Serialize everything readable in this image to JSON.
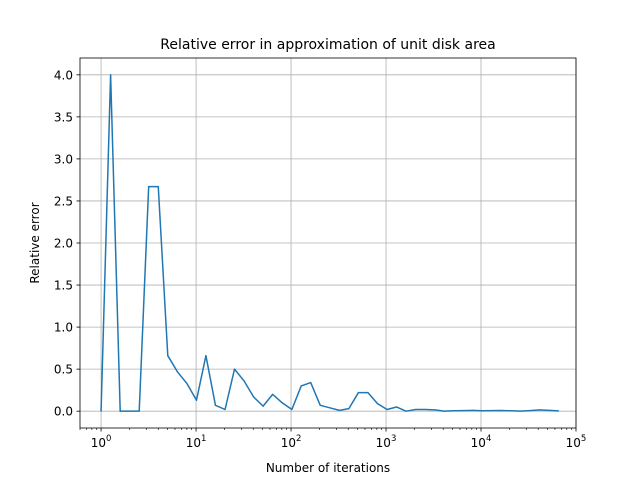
{
  "chart_data": {
    "type": "line",
    "title": "Relative error in approximation of unit disk area",
    "xlabel": "Number of iterations",
    "ylabel": "Relative error",
    "xscale": "log",
    "xlim": [
      0.6,
      100000
    ],
    "ylim": [
      -0.2,
      4.2
    ],
    "grid": true,
    "line_color": "#1f77b4",
    "x_ticks": [
      {
        "value": 1,
        "base": "10",
        "exp": "0"
      },
      {
        "value": 10,
        "base": "10",
        "exp": "1"
      },
      {
        "value": 100,
        "base": "10",
        "exp": "2"
      },
      {
        "value": 1000,
        "base": "10",
        "exp": "3"
      },
      {
        "value": 10000,
        "base": "10",
        "exp": "4"
      },
      {
        "value": 100000,
        "base": "10",
        "exp": "5"
      }
    ],
    "y_ticks": [
      {
        "value": 0.0,
        "label": "0.0"
      },
      {
        "value": 0.5,
        "label": "0.5"
      },
      {
        "value": 1.0,
        "label": "1.0"
      },
      {
        "value": 1.5,
        "label": "1.5"
      },
      {
        "value": 2.0,
        "label": "2.0"
      },
      {
        "value": 2.5,
        "label": "2.5"
      },
      {
        "value": 3.0,
        "label": "3.0"
      },
      {
        "value": 3.5,
        "label": "3.5"
      },
      {
        "value": 4.0,
        "label": "4.0"
      }
    ],
    "series": [
      {
        "x": [
          1,
          1.26,
          1.59,
          2,
          2.52,
          3.17,
          4,
          5.04,
          6.35,
          8,
          10.1,
          12.7,
          16,
          20.2,
          25.4,
          32,
          40.3,
          50.8,
          64,
          80.6,
          102,
          128,
          161,
          203,
          256,
          323,
          406,
          512,
          645,
          813,
          1024,
          1290,
          1625,
          2048,
          2580,
          3251,
          4096,
          5161,
          6502,
          8192,
          10321,
          13004,
          16384,
          20643,
          26008,
          32768,
          41285,
          52016,
          65536
        ],
        "y": [
          0.0,
          4.0,
          0.0,
          0.0,
          0.0,
          2.67,
          2.67,
          0.66,
          0.47,
          0.33,
          0.13,
          0.66,
          0.07,
          0.02,
          0.5,
          0.36,
          0.17,
          0.06,
          0.2,
          0.1,
          0.02,
          0.3,
          0.34,
          0.07,
          0.04,
          0.01,
          0.03,
          0.22,
          0.22,
          0.09,
          0.02,
          0.05,
          0.0,
          0.02,
          0.02,
          0.015,
          0.0,
          0.005,
          0.007,
          0.01,
          0.005,
          0.007,
          0.008,
          0.005,
          0.001,
          0.007,
          0.015,
          0.01,
          0.003
        ]
      }
    ]
  }
}
